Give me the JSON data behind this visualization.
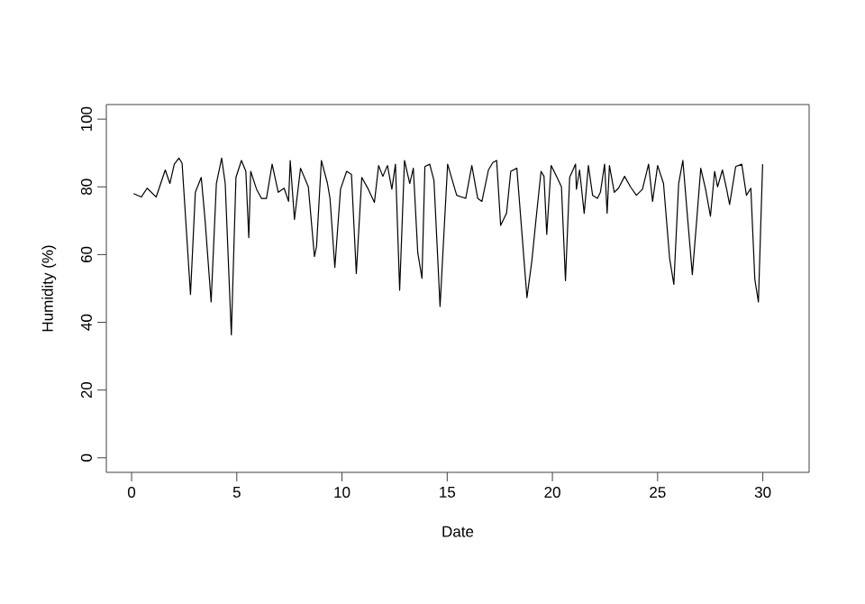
{
  "chart_data": {
    "type": "line",
    "xlabel": "Date",
    "ylabel": "Humidity (%)",
    "xlim": [
      -1.2,
      32.2
    ],
    "ylim": [
      -4.3,
      104.3
    ],
    "xticks": [
      0,
      5,
      10,
      15,
      20,
      25,
      30
    ],
    "yticks": [
      0,
      20,
      40,
      60,
      80,
      100
    ],
    "marker": "none",
    "line_style": "solid",
    "series": [
      {
        "color": "#000000",
        "x": [
          0.1,
          0.46,
          0.74,
          1.17,
          1.6,
          1.82,
          2.03,
          2.25,
          2.4,
          2.8,
          3.03,
          3.31,
          3.49,
          3.78,
          4.03,
          4.28,
          4.45,
          4.74,
          4.96,
          5.22,
          5.43,
          5.57,
          5.66,
          5.94,
          6.17,
          6.41,
          6.68,
          6.97,
          7.25,
          7.46,
          7.54,
          7.74,
          8.03,
          8.4,
          8.69,
          8.79,
          9.02,
          9.31,
          9.43,
          9.66,
          9.93,
          10.22,
          10.45,
          10.68,
          10.94,
          11.25,
          11.54,
          11.74,
          11.94,
          12.16,
          12.37,
          12.54,
          12.74,
          12.97,
          13.22,
          13.39,
          13.6,
          13.8,
          13.94,
          14.17,
          14.37,
          14.66,
          15.02,
          15.45,
          15.88,
          16.17,
          16.45,
          16.65,
          16.96,
          17.17,
          17.35,
          17.54,
          17.82,
          18.02,
          18.31,
          18.79,
          19.02,
          19.25,
          19.46,
          19.6,
          19.73,
          19.94,
          20.22,
          20.43,
          20.62,
          20.82,
          21.1,
          21.14,
          21.29,
          21.51,
          21.71,
          21.91,
          22.14,
          22.28,
          22.48,
          22.6,
          22.71,
          22.94,
          23.14,
          23.43,
          23.71,
          23.99,
          24.28,
          24.57,
          24.76,
          25.0,
          25.28,
          25.57,
          25.77,
          26.0,
          26.2,
          26.43,
          26.65,
          26.86,
          27.05,
          27.28,
          27.51,
          27.71,
          27.85,
          28.08,
          28.28,
          28.42,
          28.71,
          29.0,
          29.22,
          29.43,
          29.62,
          29.79,
          29.99
        ],
        "values": [
          78,
          77,
          79.6,
          77,
          85,
          81,
          86.7,
          88.5,
          87,
          48.2,
          78.4,
          82.8,
          70.4,
          46,
          81,
          88.5,
          81,
          36.3,
          82.8,
          87.8,
          84.6,
          65,
          84.6,
          79.3,
          76.6,
          76.6,
          86.7,
          78.4,
          79.6,
          75.7,
          87.8,
          70.4,
          85.5,
          80,
          59.4,
          62.4,
          87.8,
          81,
          76.6,
          56.2,
          79.3,
          84.6,
          83.7,
          54.4,
          82.8,
          79.3,
          75.4,
          86.3,
          83.1,
          86.3,
          79.3,
          86.7,
          49.5,
          87.8,
          81,
          85.5,
          60.6,
          53,
          86,
          86.7,
          81.9,
          44.7,
          86.7,
          77.5,
          76.6,
          86.3,
          76.6,
          75.7,
          85,
          87.2,
          87.8,
          68.6,
          72.2,
          84.6,
          85.5,
          47.3,
          58,
          72.2,
          84.6,
          83.1,
          66,
          86.3,
          82.8,
          80,
          52.3,
          82.8,
          86.7,
          79.3,
          85,
          72.2,
          86.3,
          77.5,
          76.6,
          78.4,
          86.7,
          72.2,
          86.3,
          78.4,
          79.6,
          83.1,
          80,
          77.5,
          79.3,
          86.7,
          75.7,
          86.3,
          81,
          58.9,
          51.2,
          81,
          87.8,
          70.4,
          54.1,
          70.4,
          85.5,
          79.3,
          71.3,
          84.6,
          80,
          85,
          79.3,
          74.8,
          86,
          86.7,
          77.5,
          79.6,
          52.7,
          46,
          86.7
        ]
      }
    ]
  }
}
